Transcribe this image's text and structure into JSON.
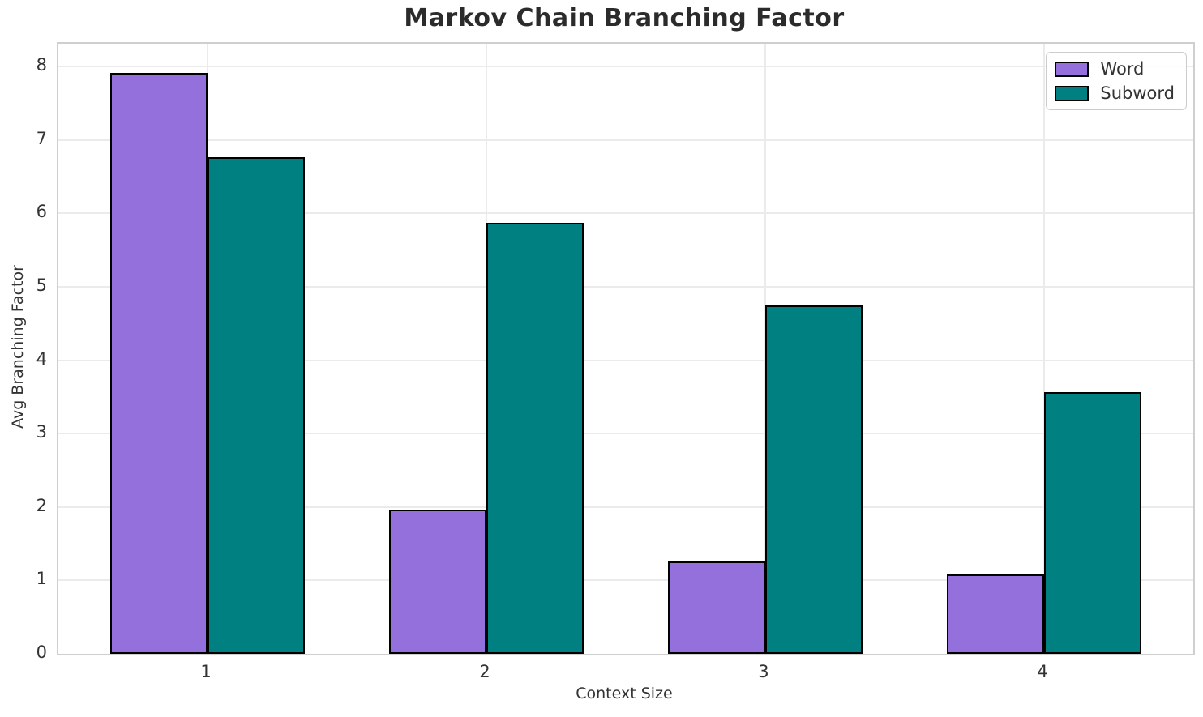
{
  "chart_data": {
    "type": "bar",
    "title": "Markov Chain Branching Factor",
    "xlabel": "Context Size",
    "ylabel": "Avg Branching Factor",
    "categories": [
      "1",
      "2",
      "3",
      "4"
    ],
    "x": [
      1,
      2,
      3,
      4
    ],
    "series": [
      {
        "name": "Word",
        "color": "#9370DB",
        "values": [
          7.91,
          1.96,
          1.26,
          1.08
        ]
      },
      {
        "name": "Subword",
        "color": "#008080",
        "values": [
          6.76,
          5.87,
          4.75,
          3.57
        ]
      }
    ],
    "bar_width": 0.35,
    "yticks": [
      0,
      1,
      2,
      3,
      4,
      5,
      6,
      7,
      8
    ],
    "ylim": [
      0,
      8.31
    ],
    "xlim": [
      0.465,
      4.535
    ],
    "grid": true,
    "legend_position": "upper right",
    "colors": {
      "bar_edge": "#000000",
      "grid": "#ebebeb",
      "spine": "#cfcfcf",
      "tick_text": "#333333",
      "title_text": "#2b2b2b"
    }
  }
}
